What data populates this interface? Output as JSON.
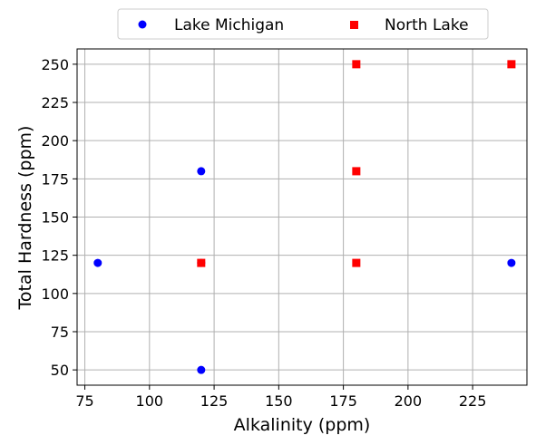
{
  "chart_data": {
    "type": "scatter",
    "xlabel": "Alkalinity (ppm)",
    "ylabel": "Total Hardness (ppm)",
    "xlim": [
      72,
      246
    ],
    "ylim": [
      40,
      260
    ],
    "xticks": [
      75,
      100,
      125,
      150,
      175,
      200,
      225
    ],
    "yticks": [
      50,
      75,
      100,
      125,
      150,
      175,
      200,
      225,
      250
    ],
    "grid": true,
    "legend_position": "top-center",
    "series": [
      {
        "name": "Lake Michigan",
        "marker": "circle",
        "color": "#0000ff",
        "points": [
          {
            "x": 80,
            "y": 120
          },
          {
            "x": 120,
            "y": 180
          },
          {
            "x": 120,
            "y": 120
          },
          {
            "x": 120,
            "y": 50
          },
          {
            "x": 240,
            "y": 120
          }
        ]
      },
      {
        "name": "North Lake",
        "marker": "square",
        "color": "#ff0000",
        "points": [
          {
            "x": 120,
            "y": 120
          },
          {
            "x": 180,
            "y": 250
          },
          {
            "x": 180,
            "y": 180
          },
          {
            "x": 180,
            "y": 120
          },
          {
            "x": 240,
            "y": 250
          }
        ]
      }
    ]
  }
}
